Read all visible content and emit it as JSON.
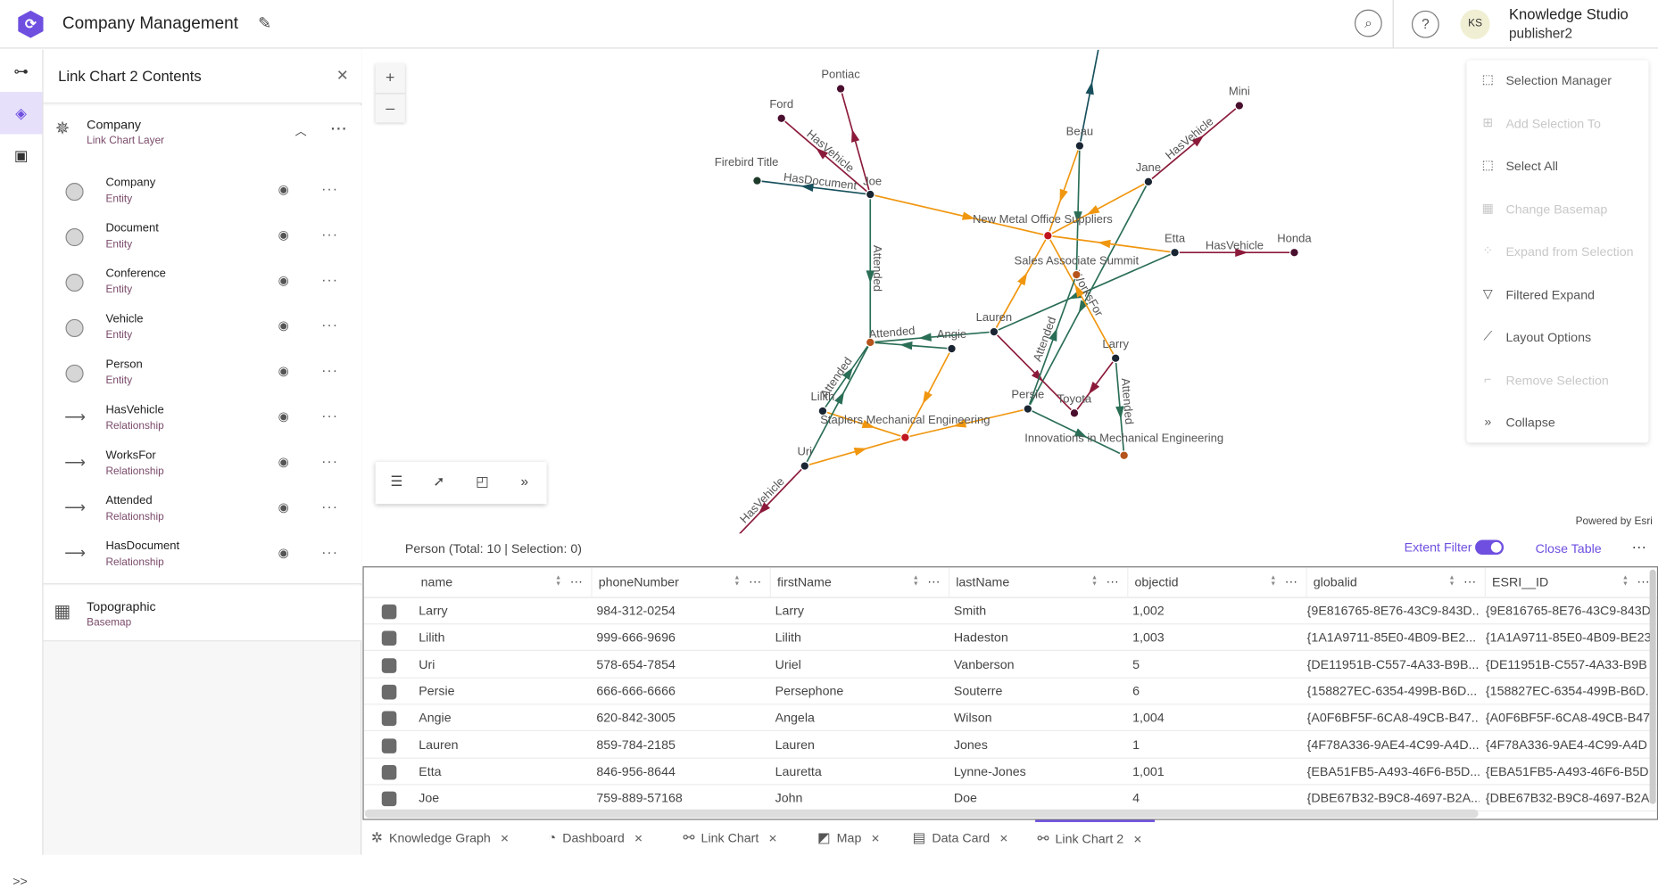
{
  "header": {
    "title": "Company Management",
    "user_initials": "KS",
    "user_name": "Knowledge Studio",
    "user_id": "publisher2",
    "search_icon": "search-icon",
    "help_icon": "help-icon"
  },
  "rail": {
    "expand_label": ">>"
  },
  "panel": {
    "title": "Link Chart 2 Contents",
    "layer": {
      "name": "Company",
      "type": "Link Chart Layer"
    },
    "sublayers": [
      {
        "name": "Company",
        "type": "Entity",
        "symbol": "circle"
      },
      {
        "name": "Document",
        "type": "Entity",
        "symbol": "circle"
      },
      {
        "name": "Conference",
        "type": "Entity",
        "symbol": "circle"
      },
      {
        "name": "Vehicle",
        "type": "Entity",
        "symbol": "circle"
      },
      {
        "name": "Person",
        "type": "Entity",
        "symbol": "circle"
      },
      {
        "name": "HasVehicle",
        "type": "Relationship",
        "symbol": "arrow"
      },
      {
        "name": "WorksFor",
        "type": "Relationship",
        "symbol": "arrow"
      },
      {
        "name": "Attended",
        "type": "Relationship",
        "symbol": "arrow"
      },
      {
        "name": "HasDocument",
        "type": "Relationship",
        "symbol": "arrow"
      }
    ],
    "basemap": {
      "name": "Topographic",
      "type": "Basemap"
    }
  },
  "map": {
    "zoom_in": "+",
    "zoom_out": "–",
    "powered_by": "Powered by Esri",
    "colors": {
      "HasVehicle": "#8b1a3a",
      "Attended": "#2a6e55",
      "HasDocument": "#17505c",
      "WorksFor": "#f0960f",
      "Person": "#1a2533",
      "Vehicle": "#4a0f2e",
      "Company": "#c0161e",
      "Conference": "#b5541c",
      "Document": "#1e3a2a"
    },
    "nodes": [
      {
        "id": "Pontiac",
        "label": "Pontiac",
        "type": "Vehicle"
      },
      {
        "id": "Ford",
        "label": "Ford",
        "type": "Vehicle"
      },
      {
        "id": "Firebird",
        "label": "Firebird Title",
        "type": "Document"
      },
      {
        "id": "Joe",
        "label": "Joe",
        "type": "Person"
      },
      {
        "id": "Beau",
        "label": "Beau",
        "type": "Person"
      },
      {
        "id": "Mini",
        "label": "Mini",
        "type": "Vehicle"
      },
      {
        "id": "Jane",
        "label": "Jane",
        "type": "Person"
      },
      {
        "id": "NewMetal",
        "label": "New Metal Office Suppliers",
        "type": "Company"
      },
      {
        "id": "Etta",
        "label": "Etta",
        "type": "Person"
      },
      {
        "id": "Honda",
        "label": "Honda",
        "type": "Vehicle"
      },
      {
        "id": "Summit",
        "label": "Sales Associate Summit",
        "type": "Conference"
      },
      {
        "id": "Lauren",
        "label": "Lauren",
        "type": "Person"
      },
      {
        "id": "Angie",
        "label": "Angie",
        "type": "Person"
      },
      {
        "id": "Conf2",
        "label": "",
        "type": "Conference"
      },
      {
        "id": "Lilith",
        "label": "Lilith",
        "type": "Person"
      },
      {
        "id": "Uri",
        "label": "Uri",
        "type": "Person"
      },
      {
        "id": "Persie",
        "label": "Persie",
        "type": "Person"
      },
      {
        "id": "Toyota",
        "label": "Toyota",
        "type": "Vehicle"
      },
      {
        "id": "Larry",
        "label": "Larry",
        "type": "Person"
      },
      {
        "id": "Innovations",
        "label": "Innovations in Mechanical Engineering",
        "type": "Conference"
      },
      {
        "id": "Staplers",
        "label": "Staplers Mechanical Engineering",
        "type": "Company"
      }
    ],
    "edges": [
      {
        "from": "Joe",
        "to": "Pontiac",
        "type": "HasVehicle",
        "label": ""
      },
      {
        "from": "Joe",
        "to": "Ford",
        "type": "HasVehicle",
        "label": "HasVehicle"
      },
      {
        "from": "Joe",
        "to": "Firebird",
        "type": "HasDocument",
        "label": "HasDocument"
      },
      {
        "from": "Joe",
        "to": "NewMetal",
        "type": "WorksFor",
        "label": ""
      },
      {
        "from": "Joe",
        "to": "Conf2",
        "type": "Attended",
        "label": "Attended"
      },
      {
        "from": "Beau",
        "to": "NewMetal",
        "type": "WorksFor",
        "label": ""
      },
      {
        "from": "Beau",
        "to": "Summit",
        "type": "Attended",
        "label": ""
      },
      {
        "from": "Beau",
        "to": "Offscreen1",
        "type": "HasDocument",
        "label": ""
      },
      {
        "from": "Jane",
        "to": "Mini",
        "type": "HasVehicle",
        "label": "HasVehicle"
      },
      {
        "from": "Jane",
        "to": "NewMetal",
        "type": "WorksFor",
        "label": ""
      },
      {
        "from": "Jane",
        "to": "Persie",
        "type": "Attended",
        "label": ""
      },
      {
        "from": "Etta",
        "to": "NewMetal",
        "type": "WorksFor",
        "label": ""
      },
      {
        "from": "Etta",
        "to": "Honda",
        "type": "HasVehicle",
        "label": "HasVehicle"
      },
      {
        "from": "Etta",
        "to": "Lauren",
        "type": "Attended",
        "label": ""
      },
      {
        "from": "Lauren",
        "to": "NewMetal",
        "type": "WorksFor",
        "label": ""
      },
      {
        "from": "Lauren",
        "to": "Toyota",
        "type": "HasVehicle",
        "label": ""
      },
      {
        "from": "Lauren",
        "to": "Conf2",
        "type": "Attended",
        "label": "Attended"
      },
      {
        "from": "Angie",
        "to": "Conf2",
        "type": "Attended",
        "label": ""
      },
      {
        "from": "Angie",
        "to": "Staplers",
        "type": "WorksFor",
        "label": ""
      },
      {
        "from": "Larry",
        "to": "NewMetal",
        "type": "WorksFor",
        "label": "WorksFor"
      },
      {
        "from": "Larry",
        "to": "Toyota",
        "type": "HasVehicle",
        "label": ""
      },
      {
        "from": "Larry",
        "to": "Innovations",
        "type": "Attended",
        "label": "Attended"
      },
      {
        "from": "Persie",
        "to": "Summit",
        "type": "Attended",
        "label": "Attended"
      },
      {
        "from": "Persie",
        "to": "Innovations",
        "type": "Attended",
        "label": ""
      },
      {
        "from": "Lilith",
        "to": "Conf2",
        "type": "Attended",
        "label": "Attended"
      },
      {
        "from": "Lilith",
        "to": "Staplers",
        "type": "WorksFor",
        "label": ""
      },
      {
        "from": "Uri",
        "to": "Conf2",
        "type": "Attended",
        "label": ""
      },
      {
        "from": "Uri",
        "to": "Staplers",
        "type": "WorksFor",
        "label": ""
      },
      {
        "from": "Persie",
        "to": "Staplers",
        "type": "WorksFor",
        "label": ""
      },
      {
        "from": "Uri",
        "to": "Offscreen2",
        "type": "HasVehicle",
        "label": "HasVehicle"
      }
    ]
  },
  "menu": [
    {
      "label": "Selection Manager",
      "icon": "selection-manager-icon",
      "glyph": "⬚",
      "enabled": true
    },
    {
      "label": "Add Selection To",
      "icon": "add-selection-icon",
      "glyph": "⊞",
      "enabled": false
    },
    {
      "label": "Select All",
      "icon": "select-all-icon",
      "glyph": "⬚",
      "enabled": true
    },
    {
      "label": "Change Basemap",
      "icon": "basemap-icon",
      "glyph": "▦",
      "enabled": false
    },
    {
      "label": "Expand from Selection",
      "icon": "expand-icon",
      "glyph": "⁘",
      "enabled": false
    },
    {
      "label": "Filtered Expand",
      "icon": "filter-icon",
      "glyph": "▽",
      "enabled": true
    },
    {
      "label": "Layout Options",
      "icon": "layout-icon",
      "glyph": "⟋",
      "enabled": true
    },
    {
      "label": "Remove Selection",
      "icon": "remove-selection-icon",
      "glyph": "⌐",
      "enabled": false
    },
    {
      "label": "Collapse",
      "icon": "collapse-icon",
      "glyph": "»",
      "enabled": true
    }
  ],
  "table": {
    "title": "Person (Total: 10 | Selection: 0)",
    "extent_filter": "Extent Filter",
    "extent_filter_on": true,
    "close": "Close Table",
    "columns": [
      "name",
      "phoneNumber",
      "firstName",
      "lastName",
      "objectid",
      "globalid",
      "ESRI__ID"
    ],
    "rows": [
      [
        "Larry",
        "984-312-0254",
        "Larry",
        "Smith",
        "1,002",
        "{9E816765-8E76-43C9-843D...",
        "{9E816765-8E76-43C9-843D"
      ],
      [
        "Lilith",
        "999-666-9696",
        "Lilith",
        "Hadeston",
        "1,003",
        "{1A1A9711-85E0-4B09-BE2...",
        "{1A1A9711-85E0-4B09-BE23"
      ],
      [
        "Uri",
        "578-654-7854",
        "Uriel",
        "Vanberson",
        "5",
        "{DE11951B-C557-4A33-B9B...",
        "{DE11951B-C557-4A33-B9B"
      ],
      [
        "Persie",
        "666-666-6666",
        "Persephone",
        "Souterre",
        "6",
        "{158827EC-6354-499B-B6D...",
        "{158827EC-6354-499B-B6D."
      ],
      [
        "Angie",
        "620-842-3005",
        "Angela",
        "Wilson",
        "1,004",
        "{A0F6BF5F-6CA8-49CB-B47...",
        "{A0F6BF5F-6CA8-49CB-B47"
      ],
      [
        "Lauren",
        "859-784-2185",
        "Lauren",
        "Jones",
        "1",
        "{4F78A336-9AE4-4C99-A4D...",
        "{4F78A336-9AE4-4C99-A4D"
      ],
      [
        "Etta",
        "846-956-8644",
        "Lauretta",
        "Lynne-Jones",
        "1,001",
        "{EBA51FB5-A493-46F6-B5D...",
        "{EBA51FB5-A493-46F6-B5D."
      ],
      [
        "Joe",
        "759-889-57168",
        "John",
        "Doe",
        "4",
        "{DBE67B32-B9C8-4697-B2A...",
        "{DBE67B32-B9C8-4697-B2A"
      ]
    ]
  },
  "tabs": [
    {
      "label": "Knowledge Graph",
      "icon": "knowledge-graph-icon",
      "glyph": "✲",
      "active": false
    },
    {
      "label": "Dashboard",
      "icon": "dashboard-icon",
      "glyph": "◔",
      "active": false
    },
    {
      "label": "Link Chart",
      "icon": "link-chart-icon",
      "glyph": "⚯",
      "active": false
    },
    {
      "label": "Map",
      "icon": "map-icon",
      "glyph": "◩",
      "active": false
    },
    {
      "label": "Data Card",
      "icon": "data-card-icon",
      "glyph": "▤",
      "active": false
    },
    {
      "label": "Link Chart 2",
      "icon": "link-chart-icon",
      "glyph": "⚯",
      "active": true
    }
  ]
}
